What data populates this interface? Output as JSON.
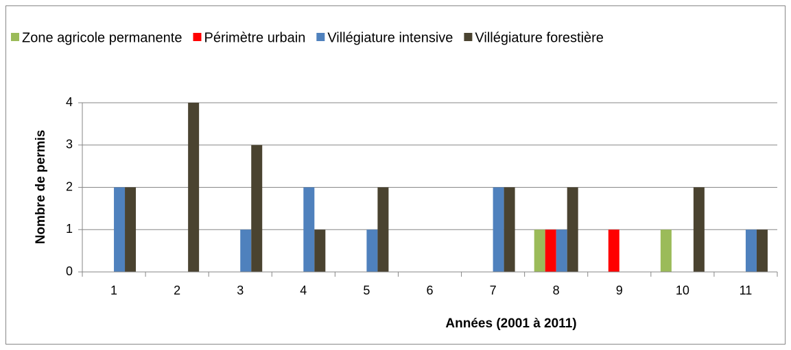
{
  "chart_data": {
    "type": "bar",
    "xlabel": "Années (2001 à 2011)",
    "ylabel": "Nombre de permis",
    "categories": [
      "1",
      "2",
      "3",
      "4",
      "5",
      "6",
      "7",
      "8",
      "9",
      "10",
      "11"
    ],
    "series": [
      {
        "name": "Zone agricole permanente",
        "color": "#9bbb59",
        "values": [
          0,
          0,
          0,
          0,
          0,
          0,
          0,
          1,
          0,
          1,
          0
        ]
      },
      {
        "name": "Périmètre urbain",
        "color": "#ff0000",
        "values": [
          0,
          0,
          0,
          0,
          0,
          0,
          0,
          1,
          1,
          0,
          0
        ]
      },
      {
        "name": "Villégiature intensive",
        "color": "#4f81bd",
        "values": [
          2,
          0,
          1,
          2,
          1,
          0,
          2,
          1,
          0,
          0,
          1
        ]
      },
      {
        "name": "Villégiature forestière",
        "color": "#4a4330",
        "values": [
          2,
          4,
          3,
          1,
          2,
          0,
          2,
          2,
          0,
          2,
          1
        ]
      }
    ],
    "ylim": [
      0,
      4
    ],
    "yticks": [
      0,
      1,
      2,
      3,
      4
    ],
    "grid": true,
    "legend": "top"
  }
}
